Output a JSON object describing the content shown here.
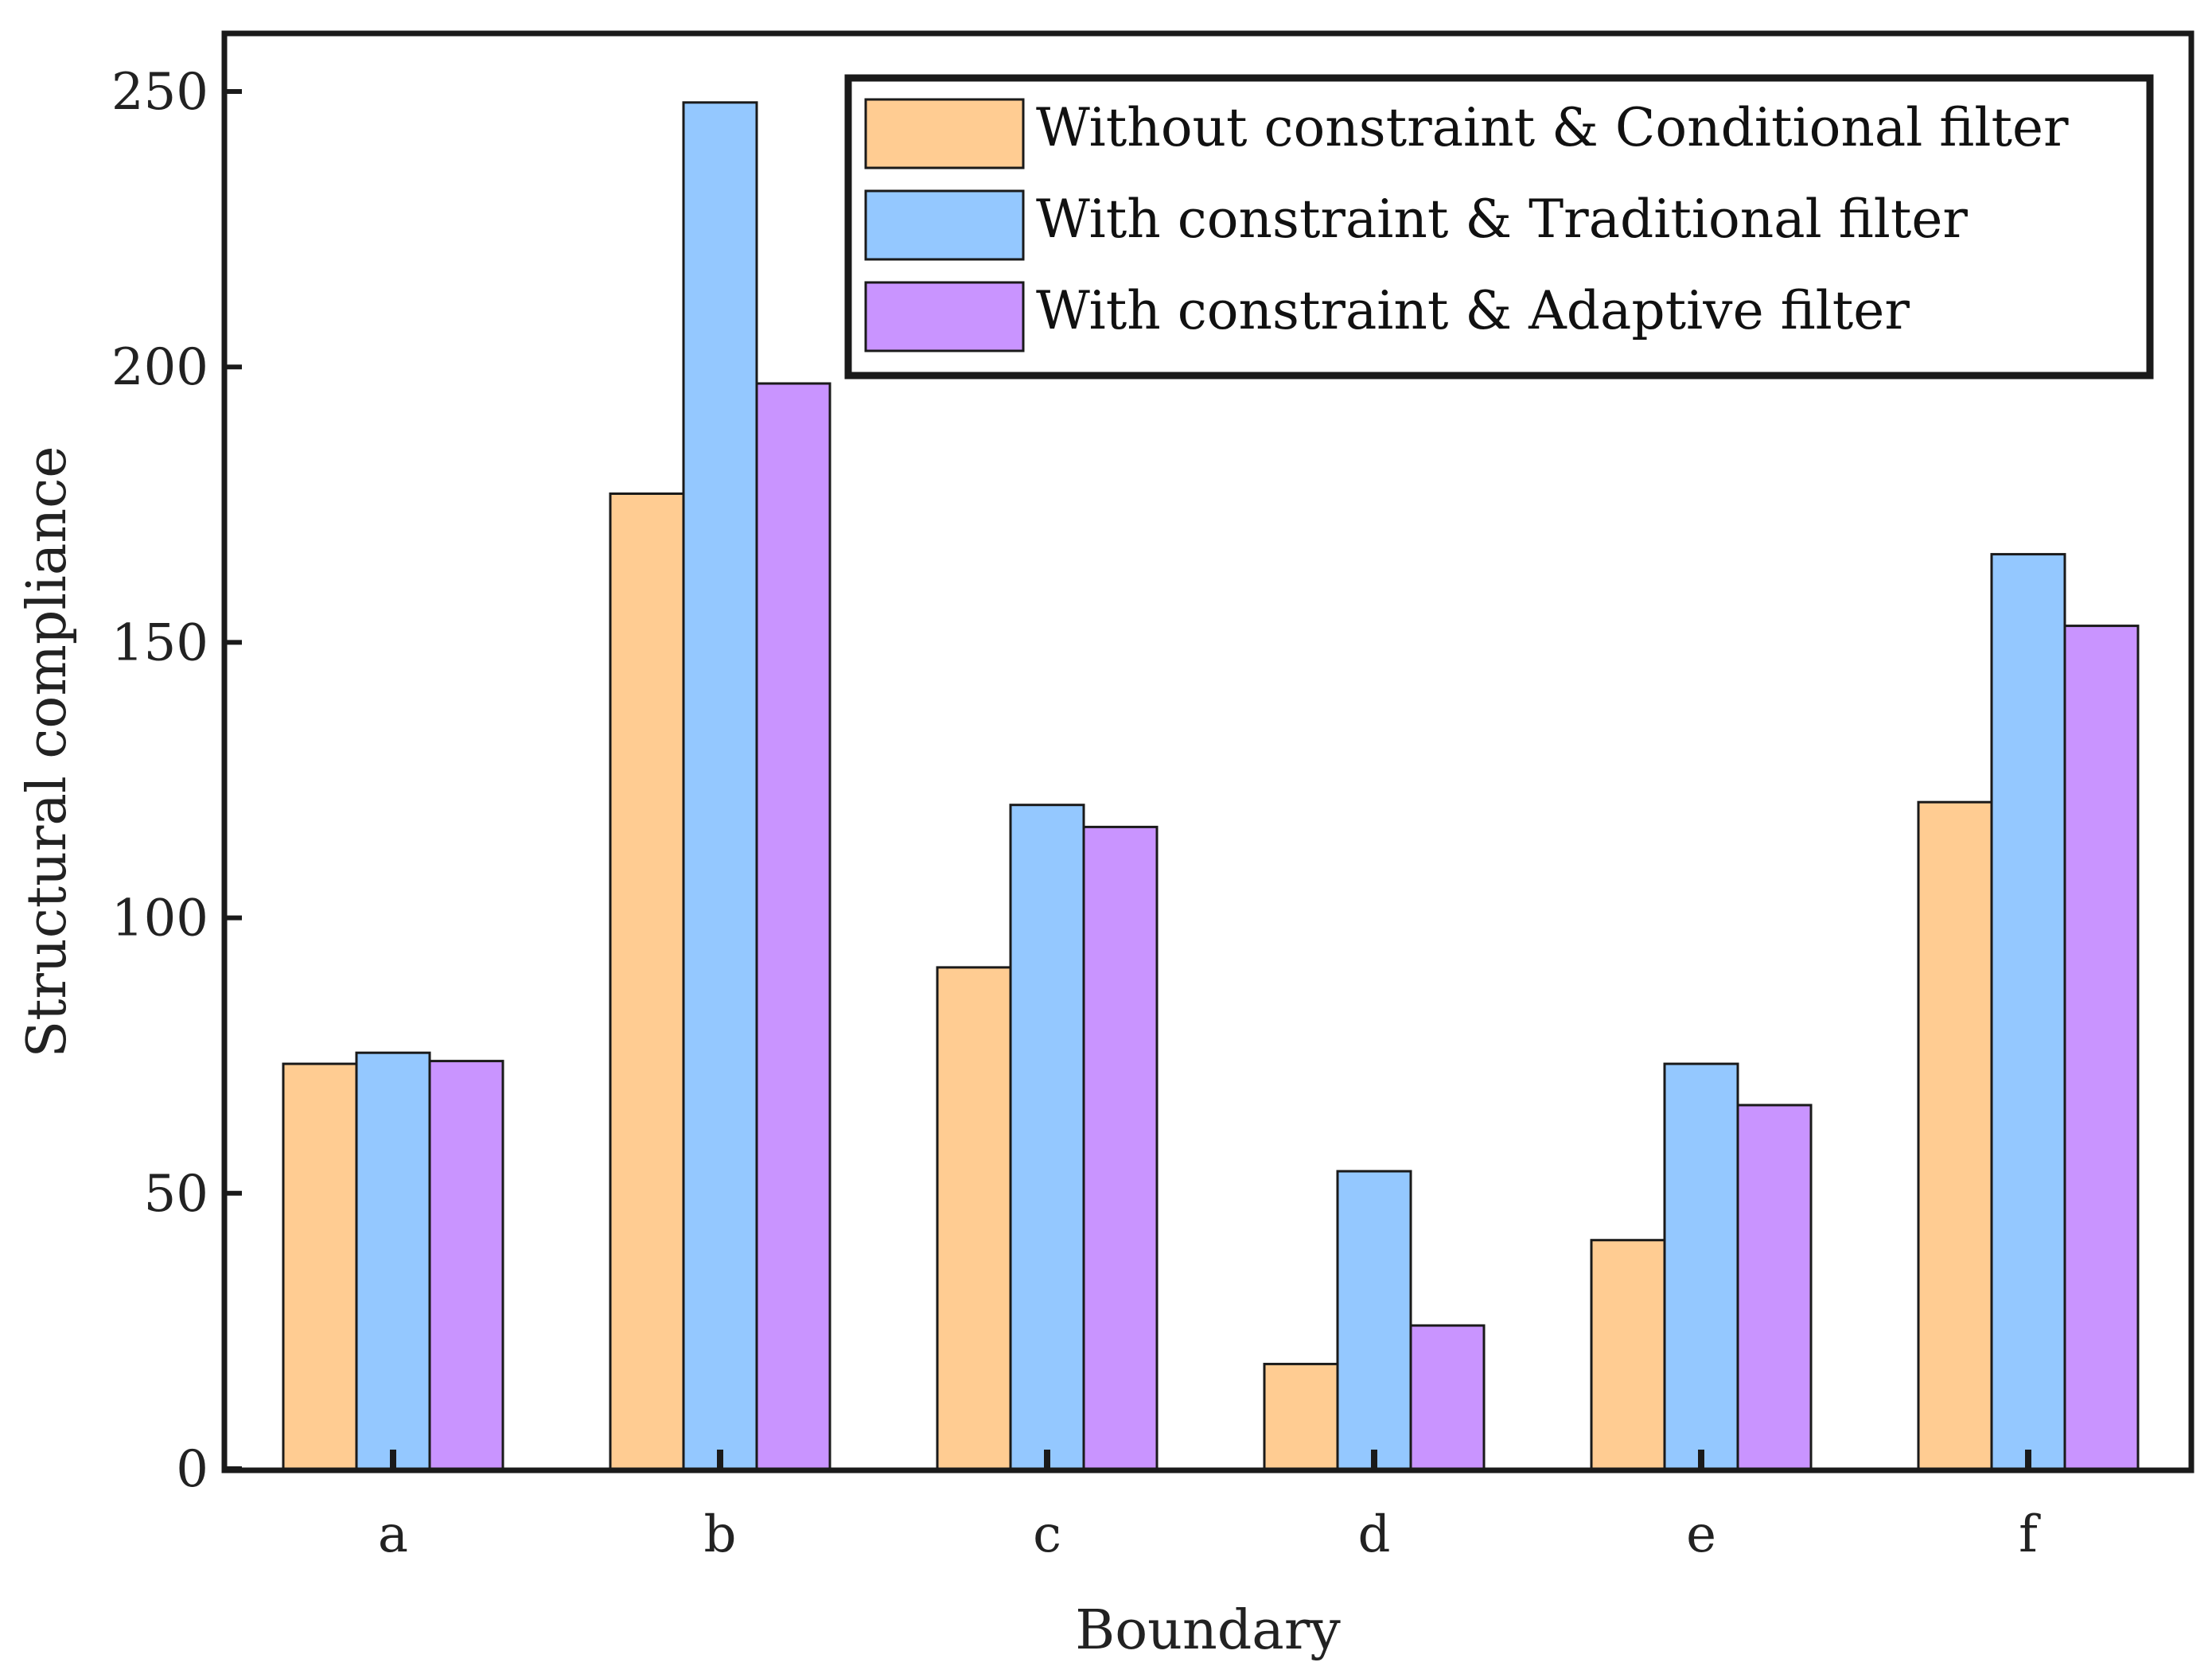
{
  "chart_data": {
    "type": "bar",
    "title": "",
    "xlabel": "Boundary",
    "ylabel": "Structural compliance",
    "categories": [
      "a",
      "b",
      "c",
      "d",
      "e",
      "f"
    ],
    "ylim": [
      0,
      260
    ],
    "yticks": [
      0,
      50,
      100,
      150,
      200,
      250
    ],
    "ytick_labels": [
      "0",
      "50",
      "100",
      "150",
      "200",
      "250"
    ],
    "grid": false,
    "legend_position": "top-right",
    "series": [
      {
        "name": "Without constraint & Conditional filter",
        "color": "#FFCC92",
        "values": [
          73.5,
          177,
          91,
          19,
          41.5,
          121
        ]
      },
      {
        "name": "With constraint & Traditional filter",
        "color": "#94C8FF",
        "values": [
          75.5,
          248,
          120.5,
          54,
          73.5,
          166
        ]
      },
      {
        "name": "With constraint & Adaptive filter",
        "color": "#C994FF",
        "values": [
          74,
          197,
          116.5,
          26,
          66,
          153
        ]
      }
    ]
  }
}
